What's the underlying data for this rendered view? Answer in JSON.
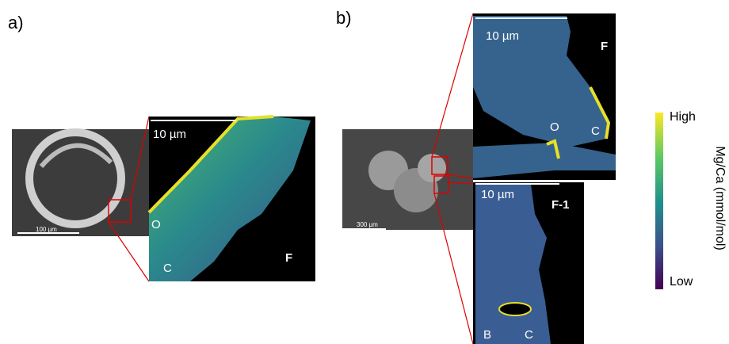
{
  "panel_a": {
    "label": "a)",
    "sem_scale": "100 µm",
    "map_scale": "10 µm",
    "map_tag": "F",
    "points": [
      "O",
      "C"
    ]
  },
  "panel_b": {
    "label": "b)",
    "sem_scale": "300 µm",
    "maps": [
      {
        "scale": "10 µm",
        "tag": "F",
        "points": [
          "O",
          "C"
        ]
      },
      {
        "scale": "10 µm",
        "tag": "F-1",
        "points": [
          "B",
          "C"
        ]
      }
    ]
  },
  "colorbar": {
    "title": "Mg/Ca (mmol/mol)",
    "high": "High",
    "low": "Low"
  }
}
